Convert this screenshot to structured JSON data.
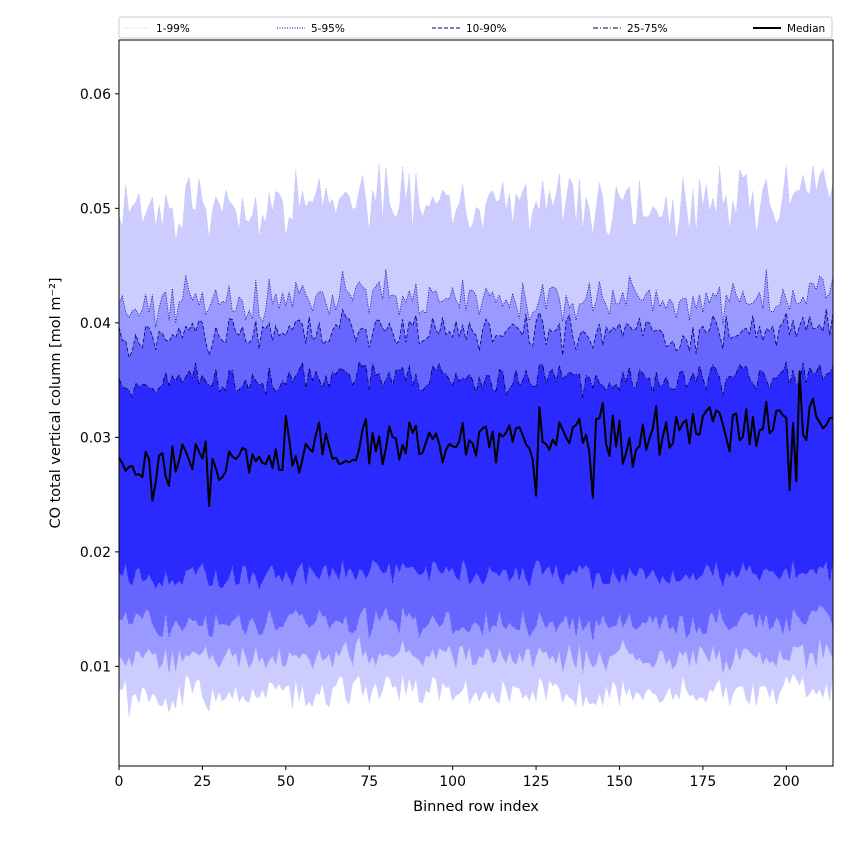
{
  "chart_data": {
    "type": "area",
    "title": "",
    "xlabel": "Binned row index",
    "ylabel": "CO total vertical column [mol m⁻²]",
    "xlim": [
      0,
      214
    ],
    "ylim": [
      0.0013,
      0.0647
    ],
    "xticks": [
      0,
      25,
      50,
      75,
      100,
      125,
      150,
      175,
      200
    ],
    "yticks": [
      0.01,
      0.02,
      0.03,
      0.04,
      0.05,
      0.06
    ],
    "ytick_labels": [
      "0.01",
      "0.02",
      "0.03",
      "0.04",
      "0.05",
      "0.06"
    ],
    "grid": false,
    "legend_position": "top",
    "bin_count": 215,
    "bands": [
      {
        "name": "1-99%",
        "lower": 0.0072,
        "upper": 0.0492,
        "low_noise": 0.0014,
        "high_noise": 0.0028,
        "fill": "#ccccff",
        "line": "#b8b8ee",
        "dash": "1,1.5"
      },
      {
        "name": "5-95%",
        "lower": 0.0105,
        "upper": 0.0412,
        "low_noise": 0.0013,
        "high_noise": 0.002,
        "fill": "#9999ff",
        "line": "#00008b",
        "dash": "1,1.5"
      },
      {
        "name": "10-90%",
        "lower": 0.0135,
        "upper": 0.0385,
        "low_noise": 0.0012,
        "high_noise": 0.0016,
        "fill": "#6666ff",
        "line": "#00006e",
        "dash": "4,2"
      },
      {
        "name": "25-75%",
        "lower": 0.0178,
        "upper": 0.0345,
        "low_noise": 0.0011,
        "high_noise": 0.0013,
        "fill": "#2a2aff",
        "line": "#00003c",
        "dash": "5,2,1,2"
      }
    ],
    "median": {
      "name": "Median",
      "start": 0.0275,
      "end": 0.0315,
      "noise": 0.0022,
      "color": "#000000"
    },
    "colors": {
      "axis": "#000000",
      "legend_border": "#cccccc"
    }
  }
}
